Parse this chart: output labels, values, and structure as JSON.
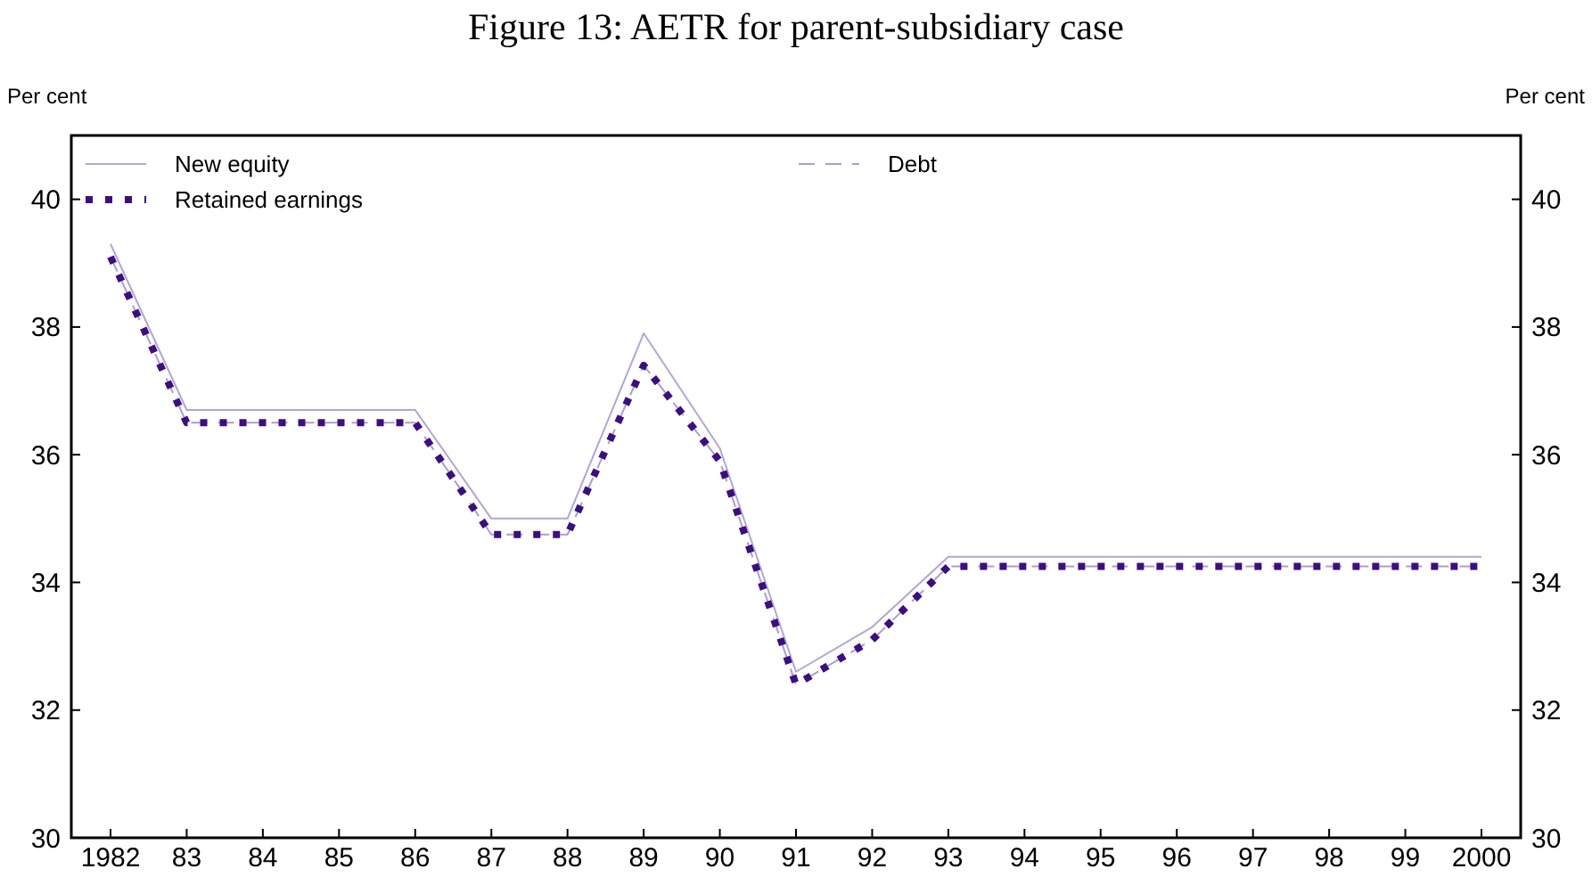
{
  "chart_data": {
    "type": "line",
    "title": "Figure 13: AETR for parent-subsidiary case",
    "ylabel": "Per cent",
    "y2label": "Per cent",
    "categories": [
      "1982",
      "83",
      "84",
      "85",
      "86",
      "87",
      "88",
      "89",
      "90",
      "91",
      "92",
      "93",
      "94",
      "95",
      "96",
      "97",
      "98",
      "99",
      "2000"
    ],
    "series": [
      {
        "name": "New equity",
        "color": "#b0a6d8",
        "line_style": "solid",
        "values": [
          39.3,
          36.7,
          36.7,
          36.7,
          36.7,
          35.0,
          35.0,
          37.9,
          36.1,
          32.6,
          33.3,
          34.4,
          34.4,
          34.4,
          34.4,
          34.4,
          34.4,
          34.4,
          34.4
        ]
      },
      {
        "name": "Debt",
        "color": "#a89ed4",
        "line_style": "dashed",
        "values": [
          39.1,
          36.5,
          36.5,
          36.5,
          36.5,
          34.75,
          34.75,
          37.4,
          35.9,
          32.4,
          33.1,
          34.25,
          34.25,
          34.25,
          34.25,
          34.25,
          34.25,
          34.25,
          34.25
        ]
      },
      {
        "name": "Retained earnings",
        "color": "#3c0f80",
        "line_style": "dotted",
        "values": [
          39.1,
          36.5,
          36.5,
          36.5,
          36.5,
          34.75,
          34.75,
          37.4,
          35.9,
          32.4,
          33.1,
          34.25,
          34.25,
          34.25,
          34.25,
          34.25,
          34.25,
          34.25,
          34.25
        ]
      }
    ],
    "ylim": [
      30,
      41
    ],
    "yticks": [
      30,
      32,
      34,
      36,
      38,
      40
    ],
    "y2lim": [
      30,
      41
    ],
    "y2ticks": [
      30,
      32,
      34,
      36,
      38,
      40
    ],
    "grid": false,
    "legend": "top"
  }
}
